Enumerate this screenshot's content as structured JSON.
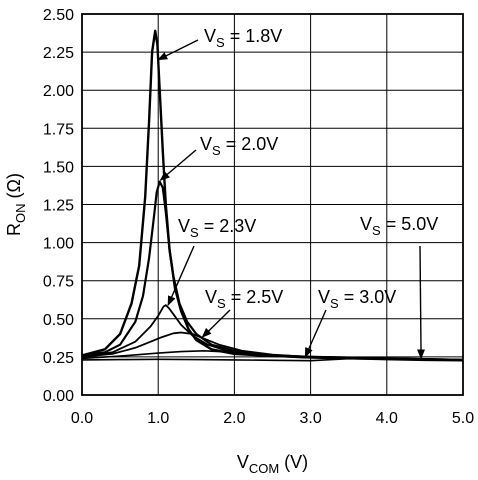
{
  "chart_data": {
    "type": "line",
    "title": "",
    "xlabel": {
      "main": "V",
      "sub": "COM",
      "suffix": " (V)"
    },
    "ylabel": {
      "main": "R",
      "sub": "ON",
      "suffix": " (Ω)"
    },
    "xlim": [
      0,
      5
    ],
    "ylim": [
      0,
      2.5
    ],
    "grid": true,
    "legend": "none",
    "x_ticks": [
      {
        "value": 0,
        "label": "0.0"
      },
      {
        "value": 1,
        "label": "1.0"
      },
      {
        "value": 2,
        "label": "2.0"
      },
      {
        "value": 3,
        "label": "3.0"
      },
      {
        "value": 4,
        "label": "4.0"
      },
      {
        "value": 5,
        "label": "5.0"
      }
    ],
    "y_ticks": [
      {
        "value": 0,
        "label": "0.00"
      },
      {
        "value": 0.25,
        "label": "0.25"
      },
      {
        "value": 0.5,
        "label": "0.50"
      },
      {
        "value": 0.75,
        "label": "0.75"
      },
      {
        "value": 1.0,
        "label": "1.00"
      },
      {
        "value": 1.25,
        "label": "1.25"
      },
      {
        "value": 1.5,
        "label": "1.50"
      },
      {
        "value": 1.75,
        "label": "1.75"
      },
      {
        "value": 2.0,
        "label": "2.00"
      },
      {
        "value": 2.25,
        "label": "2.25"
      },
      {
        "value": 2.5,
        "label": "2.50"
      }
    ],
    "series": [
      {
        "id": "vs18",
        "name": "",
        "x": [
          0.0,
          0.3,
          0.5,
          0.65,
          0.75,
          0.83,
          0.88,
          0.92,
          0.96,
          0.99,
          1.02,
          1.06,
          1.1,
          1.15,
          1.22,
          1.3,
          1.4,
          1.5,
          1.7,
          2.0,
          2.5,
          3.0,
          4.0,
          5.0
        ],
        "y": [
          0.26,
          0.3,
          0.4,
          0.6,
          0.85,
          1.3,
          1.8,
          2.25,
          2.39,
          2.3,
          2.0,
          1.6,
          1.25,
          0.95,
          0.7,
          0.55,
          0.43,
          0.36,
          0.3,
          0.27,
          0.255,
          0.25,
          0.24,
          0.23
        ]
      },
      {
        "id": "vs20",
        "name": "",
        "x": [
          0.0,
          0.3,
          0.5,
          0.7,
          0.8,
          0.88,
          0.94,
          0.98,
          1.02,
          1.06,
          1.1,
          1.15,
          1.2,
          1.28,
          1.38,
          1.5,
          1.7,
          2.0,
          2.5,
          3.0,
          4.0,
          5.0
        ],
        "y": [
          0.26,
          0.28,
          0.33,
          0.48,
          0.65,
          0.9,
          1.15,
          1.33,
          1.4,
          1.36,
          1.2,
          0.95,
          0.78,
          0.6,
          0.48,
          0.4,
          0.33,
          0.29,
          0.26,
          0.25,
          0.24,
          0.23
        ]
      },
      {
        "id": "vs23",
        "name": "",
        "x": [
          0.0,
          0.4,
          0.7,
          0.9,
          1.0,
          1.07,
          1.1,
          1.14,
          1.2,
          1.3,
          1.45,
          1.65,
          1.9,
          2.2,
          2.6,
          3.0,
          4.0,
          5.0
        ],
        "y": [
          0.25,
          0.28,
          0.35,
          0.45,
          0.52,
          0.58,
          0.59,
          0.57,
          0.53,
          0.46,
          0.39,
          0.33,
          0.29,
          0.27,
          0.255,
          0.25,
          0.24,
          0.23
        ]
      },
      {
        "id": "vs25",
        "name": "",
        "x": [
          0.0,
          0.4,
          0.7,
          0.9,
          1.05,
          1.2,
          1.3,
          1.45,
          1.6,
          1.8,
          2.1,
          2.5,
          3.0,
          4.0,
          5.0
        ],
        "y": [
          0.25,
          0.27,
          0.31,
          0.35,
          0.38,
          0.405,
          0.41,
          0.4,
          0.37,
          0.33,
          0.29,
          0.265,
          0.25,
          0.24,
          0.23
        ]
      },
      {
        "id": "vs30",
        "name": "",
        "x": [
          0.0,
          0.5,
          1.0,
          1.3,
          1.6,
          1.8,
          2.1,
          2.5,
          2.9,
          3.3,
          4.0,
          5.0
        ],
        "y": [
          0.24,
          0.255,
          0.275,
          0.285,
          0.29,
          0.285,
          0.27,
          0.255,
          0.245,
          0.24,
          0.235,
          0.23
        ]
      },
      {
        "id": "vs50",
        "name": "",
        "x": [
          0.0,
          0.5,
          1.0,
          1.5,
          2.0,
          2.5,
          3.0,
          3.5,
          4.0,
          4.5,
          5.0
        ],
        "y": [
          0.23,
          0.232,
          0.234,
          0.232,
          0.23,
          0.228,
          0.225,
          0.238,
          0.232,
          0.228,
          0.225
        ]
      }
    ],
    "annotations": [
      {
        "main": "V",
        "sub": "S",
        "tail": " = 1.8V",
        "point": [
          1.0,
          2.2
        ]
      },
      {
        "main": "V",
        "sub": "S",
        "tail": " = 2.0V",
        "point": [
          1.03,
          1.41
        ]
      },
      {
        "main": "V",
        "sub": "S",
        "tail": " = 2.3V",
        "point": [
          1.13,
          0.59
        ]
      },
      {
        "main": "V",
        "sub": "S",
        "tail": " = 2.5V",
        "point": [
          1.58,
          0.38
        ]
      },
      {
        "main": "V",
        "sub": "S",
        "tail": " = 3.0V",
        "point": [
          2.93,
          0.25
        ]
      },
      {
        "main": "V",
        "sub": "S",
        "tail": " = 5.0V",
        "point": [
          4.45,
          0.24
        ]
      }
    ]
  }
}
